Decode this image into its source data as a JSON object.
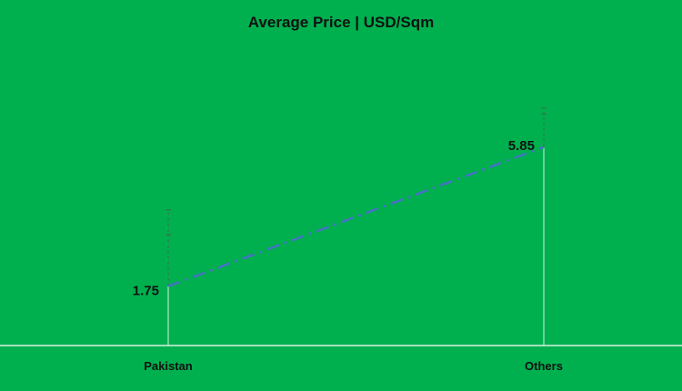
{
  "chart_data": {
    "type": "line",
    "title": "Average Price | USD/Sqm",
    "categories": [
      "Pakistan",
      "Others"
    ],
    "series": [
      {
        "values": [
          1.75,
          5.85
        ],
        "data_labels": [
          "1.75",
          "5.85"
        ],
        "color": "#4472c4",
        "line_style": "dash-dot"
      }
    ],
    "error_bar_tops": [
      4.0,
      7.0
    ],
    "xlabel": "",
    "ylabel": "",
    "ylim": [
      0,
      8
    ],
    "grid": false,
    "legend": "none"
  },
  "colors": {
    "background": "#00b04f",
    "axis": "#d9f0df",
    "error_bar": "#3a6b4a",
    "text": "#111111"
  }
}
